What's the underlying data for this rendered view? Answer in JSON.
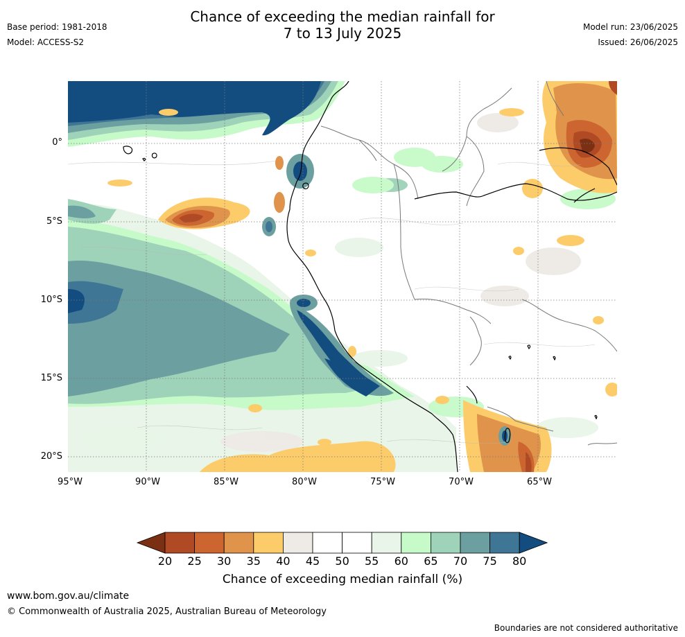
{
  "header": {
    "title_line1": "Chance of exceeding the median rainfall for",
    "title_line2": "7 to 13 July 2025",
    "base_period": "Base period: 1981-2018",
    "model": "Model: ACCESS-S2",
    "model_run": "Model run: 23/06/2025",
    "issued": "Issued: 26/06/2025"
  },
  "map": {
    "lat_labels": [
      "0°",
      "5°S",
      "10°S",
      "15°S",
      "20°S"
    ],
    "lon_labels": [
      "95°W",
      "90°W",
      "85°W",
      "80°W",
      "75°W",
      "70°W",
      "65°W"
    ]
  },
  "colorbar": {
    "ticks": [
      "20",
      "25",
      "30",
      "35",
      "40",
      "45",
      "50",
      "55",
      "60",
      "65",
      "70",
      "75",
      "80"
    ],
    "colors": [
      "#7b3014",
      "#b04a25",
      "#cc6530",
      "#e0934a",
      "#fdcc6a",
      "#eeeae6",
      "#ffffff",
      "#ffffff",
      "#e8f5e8",
      "#c6fac8",
      "#9ed2b9",
      "#6b9fa0",
      "#3f7595",
      "#134d80"
    ],
    "label": "Chance of exceeding median rainfall (%)"
  },
  "footer": {
    "link": "www.bom.gov.au/climate",
    "copyright": "© Commonwealth of Australia 2025, Australian Bureau of Meteorology",
    "note": "Boundaries are not considered authoritative"
  }
}
